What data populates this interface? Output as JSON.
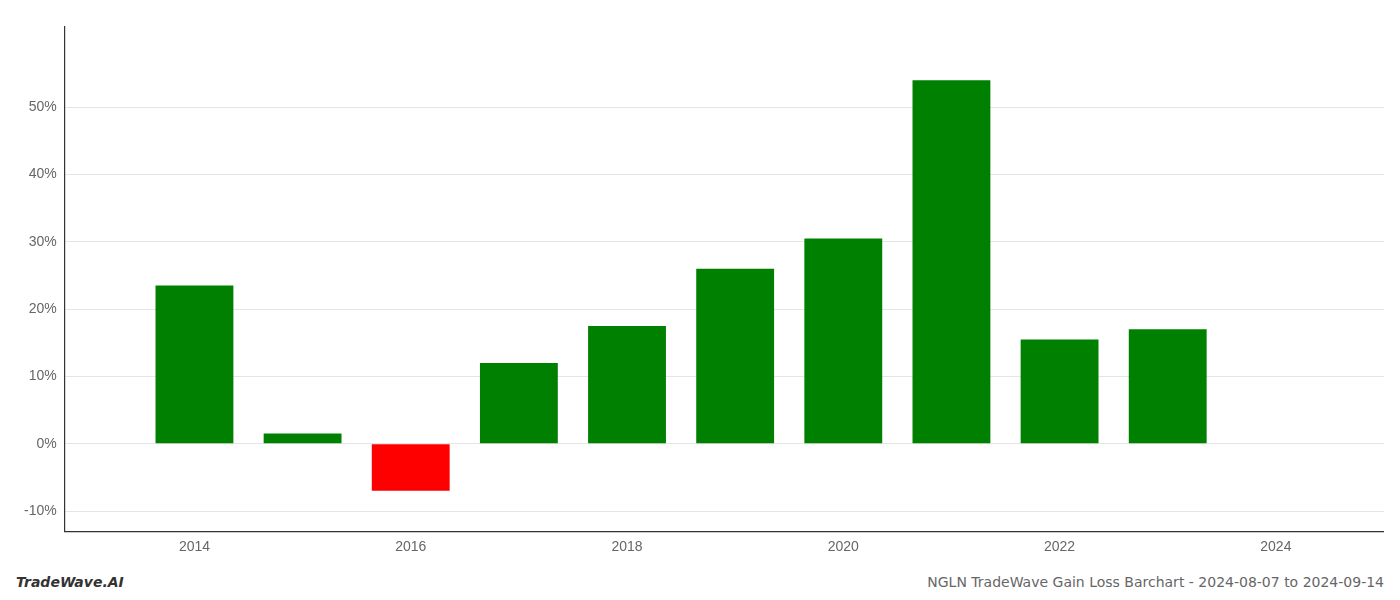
{
  "chart_data": {
    "type": "bar",
    "title": "NGLN TradeWave Gain Loss Barchart - 2024-08-07 to 2024-09-14",
    "annotations": [
      "TradeWave.AI"
    ],
    "x": [
      2014,
      2015,
      2016,
      2017,
      2018,
      2019,
      2020,
      2021,
      2022,
      2023
    ],
    "values": [
      23.5,
      1.5,
      -7.0,
      12.0,
      17.5,
      26.0,
      30.5,
      54.0,
      15.5,
      17.0
    ],
    "colors": [
      "#008000",
      "#008000",
      "#ff0000",
      "#008000",
      "#008000",
      "#008000",
      "#008000",
      "#008000",
      "#008000",
      "#008000"
    ],
    "xlim": [
      2012.8,
      2025.0
    ],
    "xticks": [
      2014,
      2016,
      2018,
      2020,
      2022,
      2024
    ],
    "ylim": [
      -13,
      62
    ],
    "yticks": [
      {
        "value": -10,
        "label": "-10%"
      },
      {
        "value": 0,
        "label": "0%"
      },
      {
        "value": 10,
        "label": "10%"
      },
      {
        "value": 20,
        "label": "20%"
      },
      {
        "value": 30,
        "label": "30%"
      },
      {
        "value": 40,
        "label": "40%"
      },
      {
        "value": 50,
        "label": "50%"
      }
    ],
    "grid": "y"
  }
}
